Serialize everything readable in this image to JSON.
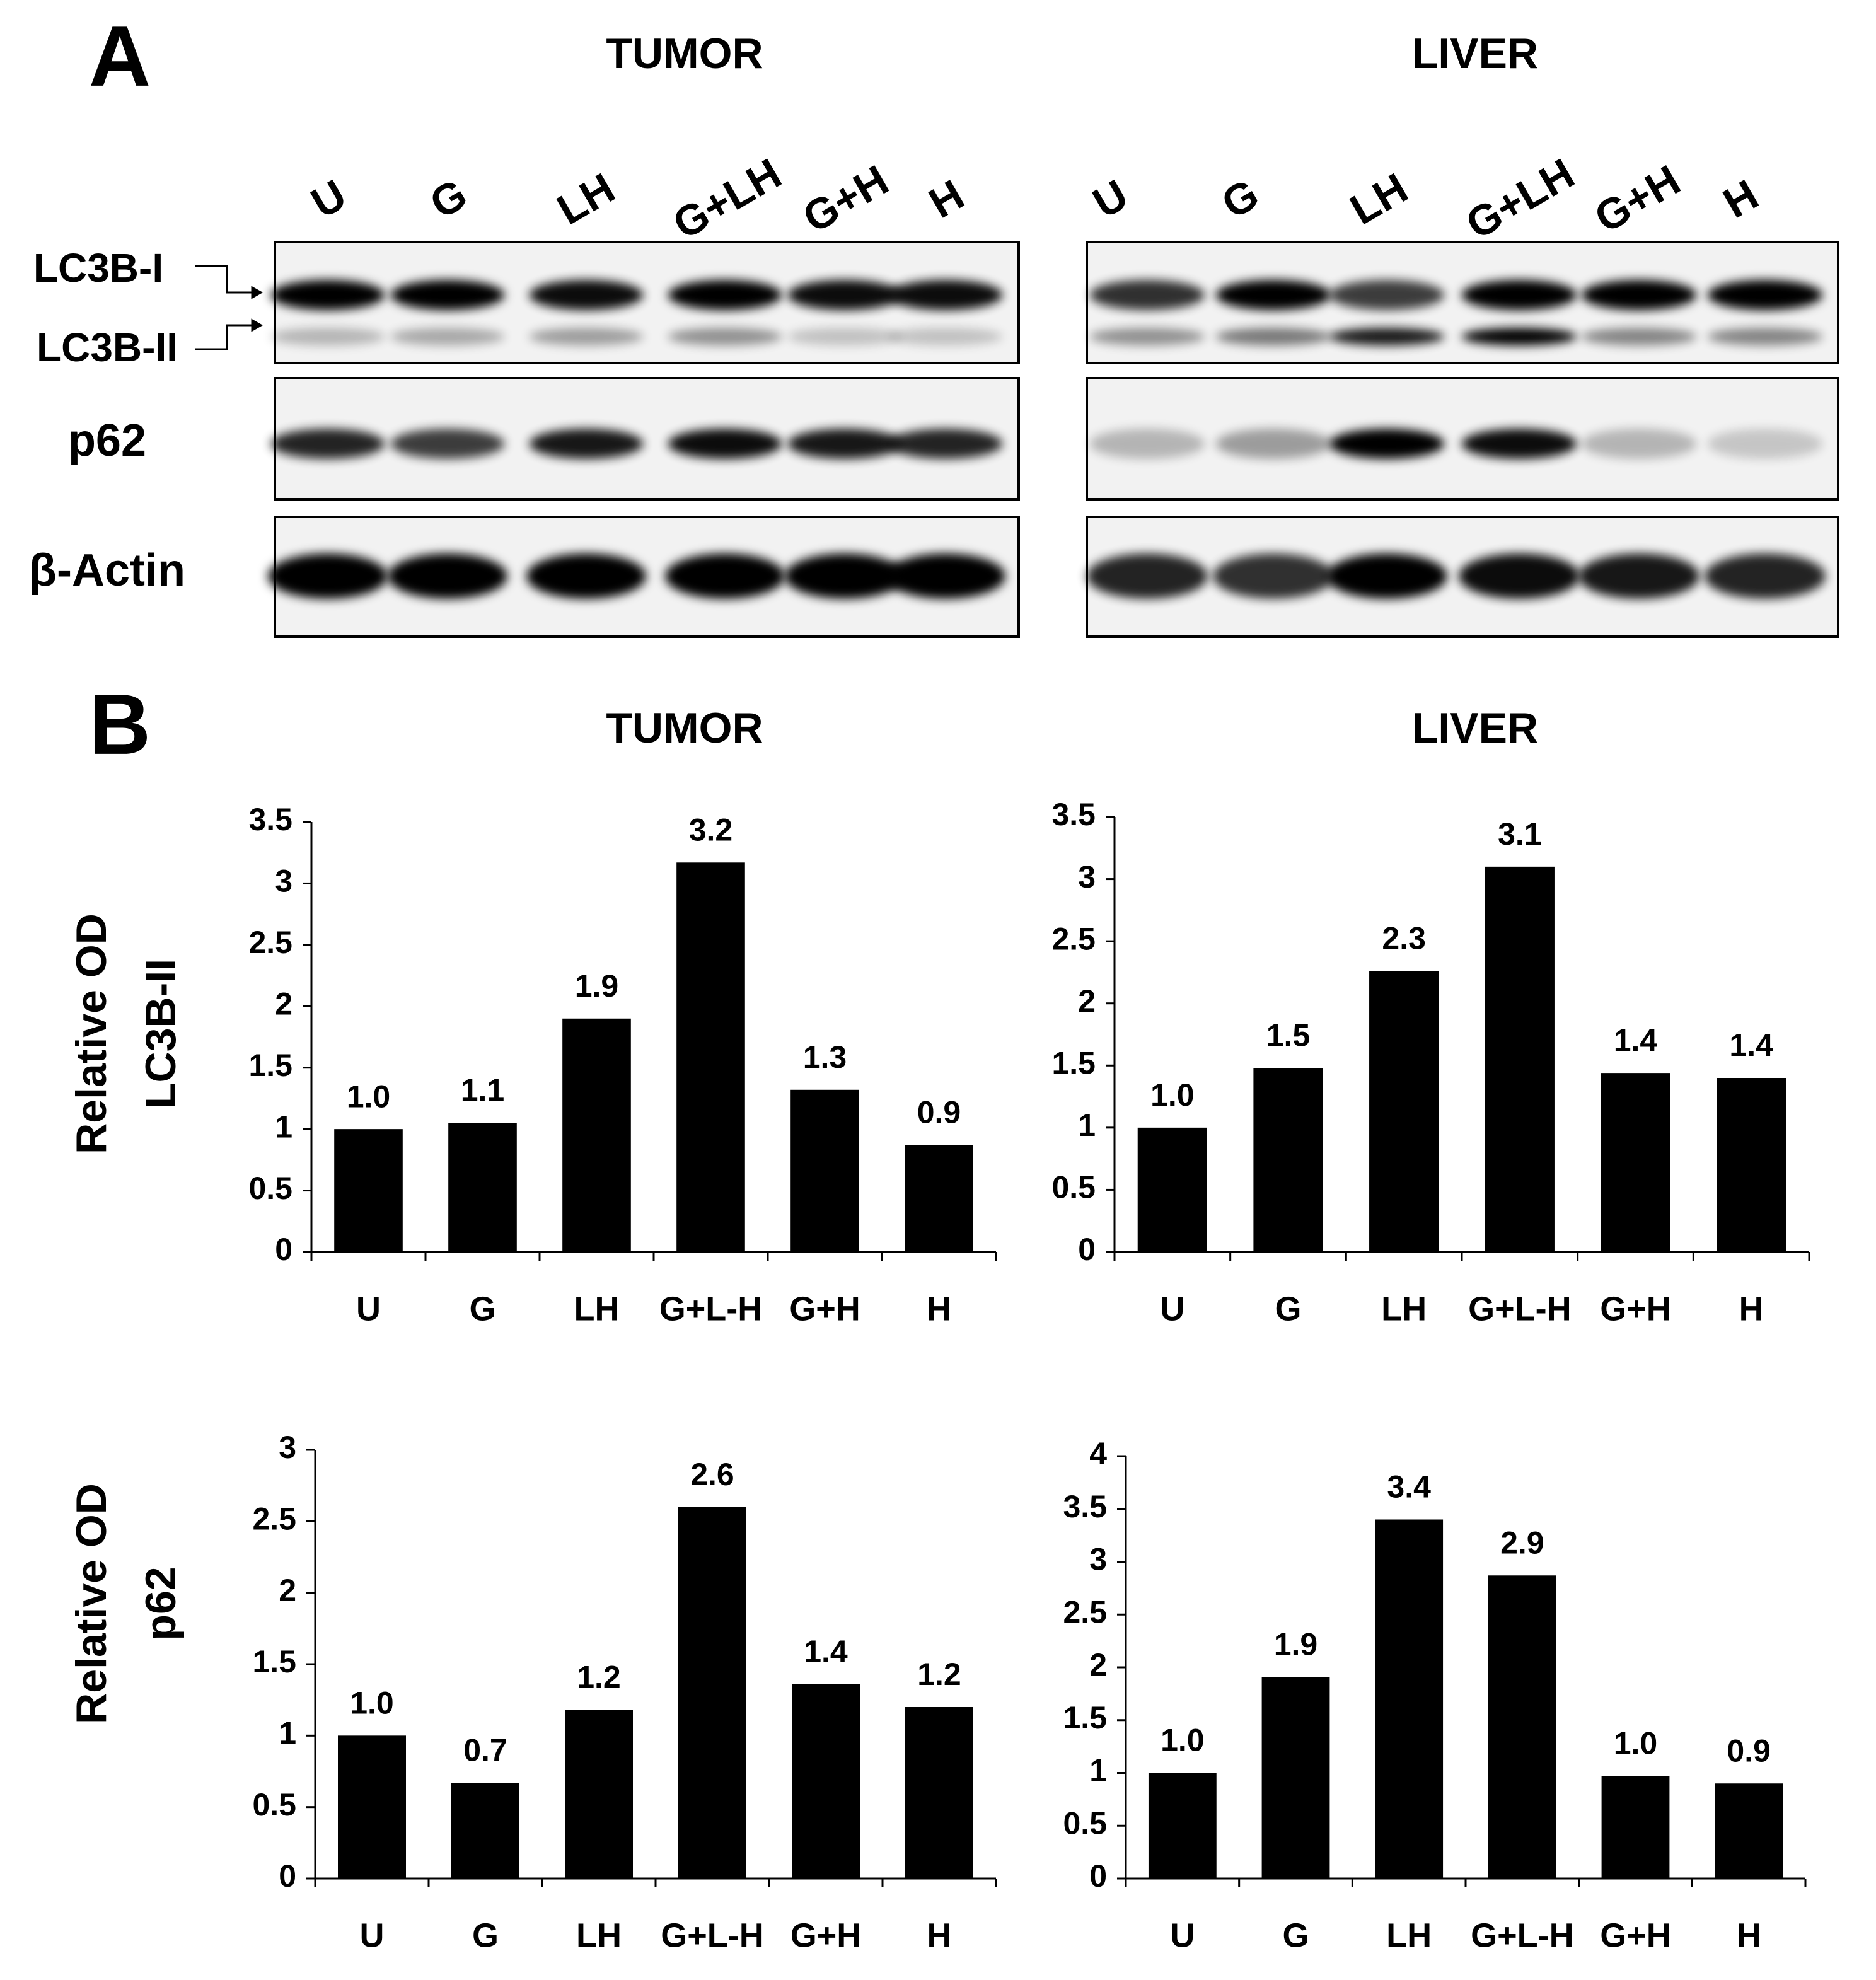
{
  "panel_a": {
    "label": "A",
    "row_labels": [
      "LC3B-I",
      "LC3B-II",
      "p62",
      "β-Actin"
    ],
    "blots": [
      {
        "title": "TUMOR",
        "lanes": [
          "U",
          "G",
          "LH",
          "G+LH",
          "G+H",
          "H"
        ]
      },
      {
        "title": "LIVER",
        "lanes": [
          "U",
          "G",
          "LH",
          "G+LH",
          "G+H",
          "H"
        ]
      }
    ]
  },
  "panel_b": {
    "label": "B",
    "column_titles": [
      "TUMOR",
      "LIVER"
    ],
    "row_labels": [
      [
        "Relative OD",
        "LC3B-II"
      ],
      [
        "Relative OD",
        "p62"
      ]
    ]
  },
  "chart_data": [
    {
      "type": "bar",
      "categories": [
        "U",
        "G",
        "LH",
        "G+L-H",
        "G+H",
        "H"
      ],
      "color": "#000000",
      "values": [
        1.0,
        1.05,
        1.9,
        3.17,
        1.32,
        0.87
      ],
      "value_labels": [
        "1.0",
        "1.1",
        "1.9",
        "3.2",
        "1.3",
        "0.9"
      ],
      "ylim": [
        0,
        3.5
      ],
      "yticks": [
        0,
        0.5,
        1,
        1.5,
        2,
        2.5,
        3,
        3.5
      ]
    },
    {
      "type": "bar",
      "categories": [
        "U",
        "G",
        "LH",
        "G+L-H",
        "G+H",
        "H"
      ],
      "color": "#000000",
      "values": [
        1.0,
        1.48,
        2.26,
        3.1,
        1.44,
        1.4
      ],
      "value_labels": [
        "1.0",
        "1.5",
        "2.3",
        "3.1",
        "1.4",
        "1.4"
      ],
      "ylim": [
        0,
        3.5
      ],
      "yticks": [
        0,
        0.5,
        1,
        1.5,
        2,
        2.5,
        3,
        3.5
      ]
    },
    {
      "type": "bar",
      "categories": [
        "U",
        "G",
        "LH",
        "G+L-H",
        "G+H",
        "H"
      ],
      "color": "#000000",
      "values": [
        1.0,
        0.67,
        1.18,
        2.6,
        1.36,
        1.2
      ],
      "value_labels": [
        "1.0",
        "0.7",
        "1.2",
        "2.6",
        "1.4",
        "1.2"
      ],
      "ylim": [
        0,
        3
      ],
      "yticks": [
        0,
        0.5,
        1,
        1.5,
        2,
        2.5,
        3
      ]
    },
    {
      "type": "bar",
      "categories": [
        "U",
        "G",
        "LH",
        "G+L-H",
        "G+H",
        "H"
      ],
      "color": "#000000",
      "values": [
        1.0,
        1.91,
        3.4,
        2.87,
        0.97,
        0.9
      ],
      "value_labels": [
        "1.0",
        "1.9",
        "3.4",
        "2.9",
        "1.0",
        "0.9"
      ],
      "ylim": [
        0,
        4
      ],
      "yticks": [
        0,
        0.5,
        1,
        1.5,
        2,
        2.5,
        3,
        3.5,
        4
      ]
    }
  ]
}
